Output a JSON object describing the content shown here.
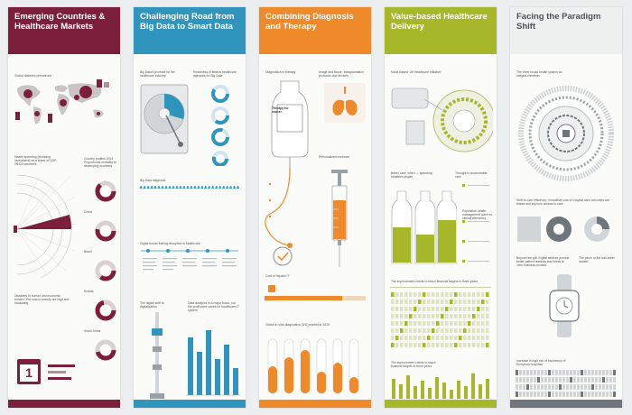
{
  "colors": {
    "panel1": "#7c1f3d",
    "panel2": "#2f95bd",
    "panel3": "#ef8a2a",
    "panel4": "#a7b72a",
    "panel5": "#6f767b"
  },
  "panels": [
    {
      "title": "Emerging Countries & Healthcare Markets",
      "items": [
        "Global diabetes prevalence",
        "Health spending (including investment) as a share of GDP, OECD countries",
        "Country profiles 2014 Proportional mortality in developing countries",
        "China",
        "Brazil",
        "Russia",
        "South Africa",
        "Disasters in human and economic burden: The cost to society are high and escalating"
      ],
      "stat": "1"
    },
    {
      "title": "Challenging Road from Big Data to Smart Data",
      "items": [
        "Big Data's promise for the healthcare industry",
        "Readiness of federal healthcare agencies for Big Data",
        "Big Data diagnosis",
        "Digital trends fueling disruption in healthcare",
        "The digital shift to digitalization",
        "Data analytics is a major focus, but the profit pace varies for healthcare IT system"
      ]
    },
    {
      "title": "Combining Diagnosis and Therapy",
      "items": [
        "Diagnostics in therapy",
        "Therapy for cancer",
        "Image and tissue: transplantation protocols and devices",
        "Personalized medicine",
        "Cost of hepatic IT",
        "Global in vitro diagnostics (IVD) market in 2020"
      ]
    },
    {
      "title": "Value-based Healthcare Delivery",
      "items": [
        "Value-based: UK healthcare initiative",
        "Better care, when — spending healthier people",
        "Thought to accountable care",
        "Population health management (care for clinical elements)",
        "The improvement needs to reach financial targets in three years"
      ]
    },
    {
      "title": "Facing the Paradigm Shift",
      "items": [
        "The three broad health system as integral elements",
        "Shift to care efficiency: Innovative cost of hospital care outcomes are tested and improve access to care",
        "Beyond the gift: Digital devices provide better patient rewards and follow to 'new business models'",
        "The pinch of the ball-ticket market",
        "Increase in high risk of insolvency of European hospitals"
      ]
    }
  ]
}
